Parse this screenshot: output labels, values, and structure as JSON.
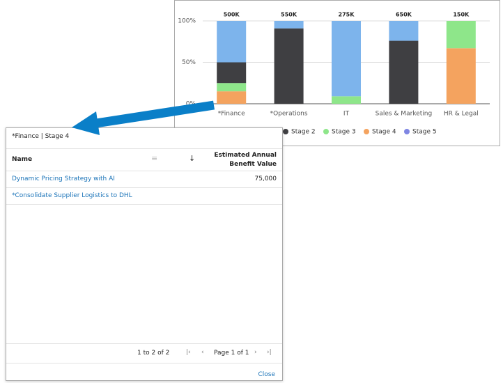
{
  "chart_data": {
    "type": "stacked-bar-percent",
    "categories": [
      "*Finance",
      "*Operations",
      "IT",
      "Sales & Marketing",
      "HR & Legal"
    ],
    "totals": [
      500000,
      550000,
      275000,
      650000,
      150000
    ],
    "total_labels": [
      "500K",
      "550K",
      "275K",
      "650K",
      "150K"
    ],
    "series": [
      {
        "color": "#7db4ec",
        "values": [
          50,
          9,
          91,
          24,
          0
        ]
      },
      {
        "name": "Stage 2",
        "color": "#3f3f42",
        "values": [
          25,
          91,
          0,
          76,
          0
        ]
      },
      {
        "name": "Stage 3",
        "color": "#8ee68a",
        "values": [
          10,
          0,
          9,
          0,
          33
        ]
      },
      {
        "name": "Stage 4",
        "color": "#f4a35f",
        "values": [
          15,
          0,
          0,
          0,
          67
        ]
      },
      {
        "name": "Stage 5",
        "color": "#7f86e3",
        "values": [
          0,
          0,
          0,
          0,
          0
        ]
      }
    ],
    "ylim": [
      0,
      100
    ],
    "yticks": [
      {
        "value": 0,
        "label": "0%"
      },
      {
        "value": 50,
        "label": "50%"
      },
      {
        "value": 100,
        "label": "100%"
      }
    ],
    "grid": true
  },
  "dialog": {
    "title": "*Finance | Stage 4",
    "table": {
      "columns": [
        "Name",
        "Estimated Annual Benefit Value"
      ],
      "rows": [
        [
          "Dynamic Pricing Strategy with AI",
          "75,000"
        ],
        [
          "*Consolidate Supplier Logistics to DHL",
          null
        ]
      ]
    },
    "pager": {
      "summary": "1 to 2 of 2",
      "page": "Page 1 of 1"
    },
    "close": "Close"
  }
}
